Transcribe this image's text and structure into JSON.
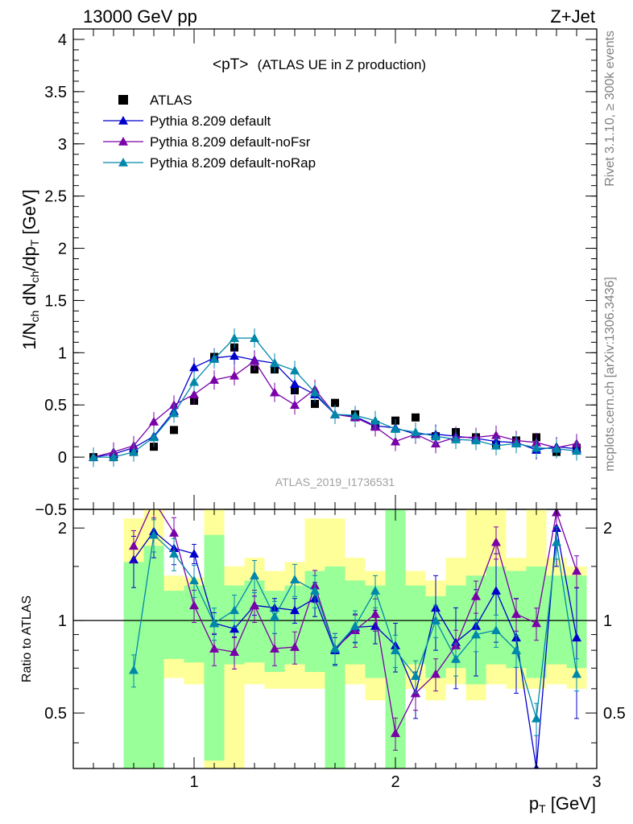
{
  "header": {
    "left": "13000 GeV pp",
    "right": "Z+Jet"
  },
  "side_labels": {
    "rivet": "Rivet 3.1.10, ≥ 300k events",
    "mcplots": "mcplots.cern.ch [arXiv:1306.3436]"
  },
  "analysis_tag": "ATLAS_2019_I1736531",
  "colors": {
    "data": "#000000",
    "default": "#0000cc",
    "noFsr": "#7a00a8",
    "noRap": "#0088aa",
    "band_yellow": "#ffff99",
    "band_green": "#99ff99"
  },
  "chart_data": [
    {
      "type": "line",
      "title": "<pT>",
      "subtitle": "(ATLAS UE in Z production)",
      "ylabel": "1/N_ch dN_ch/dp_T [GeV]",
      "xlim": [
        0.4,
        3.0
      ],
      "ylim": [
        -0.5,
        4.1
      ],
      "yticks": [
        -0.5,
        0,
        0.5,
        1,
        1.5,
        2,
        2.5,
        3,
        3.5,
        4
      ],
      "ytick_labels": [
        "−0.5",
        "0",
        "0.5",
        "1",
        "1.5",
        "2",
        "2.5",
        "3",
        "3.5",
        "4"
      ],
      "legend_position": "top-left",
      "x": [
        0.5,
        0.6,
        0.7,
        0.8,
        0.9,
        1.0,
        1.1,
        1.2,
        1.3,
        1.4,
        1.5,
        1.6,
        1.7,
        1.8,
        1.9,
        2.0,
        2.1,
        2.2,
        2.3,
        2.4,
        2.5,
        2.6,
        2.7,
        2.8,
        2.9
      ],
      "series": [
        {
          "name": "ATLAS",
          "key": "data",
          "marker": "square",
          "values": [
            0.0,
            0.0,
            0.05,
            0.1,
            0.26,
            0.54,
            0.96,
            1.05,
            0.84,
            0.84,
            0.64,
            0.51,
            0.52,
            0.41,
            0.31,
            0.35,
            0.38,
            0.2,
            0.24,
            0.19,
            0.12,
            0.16,
            0.19,
            0.05,
            0.09
          ]
        },
        {
          "name": "Pythia 8.209 default",
          "key": "default",
          "marker": "triangle",
          "values": [
            0.0,
            0.03,
            0.09,
            0.2,
            0.44,
            0.86,
            0.95,
            0.97,
            0.93,
            0.9,
            0.7,
            0.6,
            0.41,
            0.39,
            0.3,
            0.28,
            0.22,
            0.22,
            0.2,
            0.18,
            0.15,
            0.14,
            0.07,
            0.1,
            0.08
          ]
        },
        {
          "name": "Pythia 8.209 default-noFsr",
          "key": "noFsr",
          "marker": "triangle",
          "values": [
            0.0,
            0.05,
            0.11,
            0.34,
            0.5,
            0.6,
            0.74,
            0.78,
            0.92,
            0.62,
            0.5,
            0.65,
            0.41,
            0.38,
            0.29,
            0.15,
            0.22,
            0.13,
            0.19,
            0.19,
            0.21,
            0.16,
            0.14,
            0.09,
            0.13
          ]
        },
        {
          "name": "Pythia 8.209 default-noRap",
          "key": "noRap",
          "marker": "triangle",
          "values": [
            0.0,
            0.0,
            0.05,
            0.19,
            0.42,
            0.72,
            0.94,
            1.14,
            1.14,
            0.9,
            0.83,
            0.62,
            0.41,
            0.4,
            0.35,
            0.27,
            0.24,
            0.2,
            0.17,
            0.16,
            0.11,
            0.13,
            0.09,
            0.08,
            0.06
          ]
        }
      ]
    },
    {
      "type": "line",
      "ylabel": "Ratio to ATLAS",
      "xlabel": "p_T [GeV]",
      "xlim": [
        0.4,
        3.0
      ],
      "ylim": [
        0.33,
        2.3
      ],
      "yscale": "log",
      "yticks": [
        0.5,
        1,
        2
      ],
      "ytick_labels": [
        "0.5",
        "1",
        "2"
      ],
      "xticks": [
        1,
        2,
        3
      ],
      "xtick_labels": [
        "1",
        "2",
        "3"
      ],
      "reference_line": 1,
      "bands": {
        "edges": [
          0.65,
          0.75,
          0.85,
          0.95,
          1.05,
          1.15,
          1.25,
          1.35,
          1.45,
          1.55,
          1.65,
          1.75,
          1.85,
          1.95,
          2.05,
          2.15,
          2.25,
          2.35,
          2.45,
          2.55,
          2.65,
          2.75,
          2.85,
          2.95
        ],
        "yellow": [
          [
            0.3,
            2.15
          ],
          [
            0.3,
            2.3
          ],
          [
            0.65,
            1.4
          ],
          [
            0.62,
            1.38
          ],
          [
            0.3,
            2.3
          ],
          [
            0.3,
            1.5
          ],
          [
            0.62,
            1.6
          ],
          [
            0.6,
            1.45
          ],
          [
            0.6,
            1.55
          ],
          [
            0.6,
            2.15
          ],
          [
            0.3,
            2.15
          ],
          [
            0.62,
            1.6
          ],
          [
            0.55,
            1.45
          ],
          [
            0.3,
            2.3
          ],
          [
            0.6,
            1.45
          ],
          [
            0.55,
            1.35
          ],
          [
            0.62,
            1.6
          ],
          [
            0.55,
            2.3
          ],
          [
            0.62,
            2.3
          ],
          [
            0.6,
            1.6
          ],
          [
            0.6,
            2.3
          ],
          [
            0.62,
            1.6
          ],
          [
            0.6,
            1.5
          ],
          [
            0.3,
            2.3
          ]
        ],
        "green": [
          [
            0.3,
            1.55
          ],
          [
            0.3,
            1.75
          ],
          [
            0.75,
            1.25
          ],
          [
            0.73,
            1.3
          ],
          [
            0.35,
            1.9
          ],
          [
            0.72,
            1.3
          ],
          [
            0.73,
            1.35
          ],
          [
            0.68,
            1.25
          ],
          [
            0.72,
            1.3
          ],
          [
            0.68,
            1.45
          ],
          [
            0.3,
            1.5
          ],
          [
            0.72,
            1.35
          ],
          [
            0.65,
            1.3
          ],
          [
            0.3,
            2.3
          ],
          [
            0.72,
            1.3
          ],
          [
            0.65,
            1.2
          ],
          [
            0.7,
            1.3
          ],
          [
            0.62,
            1.4
          ],
          [
            0.72,
            1.5
          ],
          [
            0.7,
            1.45
          ],
          [
            0.65,
            1.5
          ],
          [
            0.72,
            1.4
          ],
          [
            0.7,
            1.4
          ],
          [
            0.55,
            1.5
          ]
        ]
      },
      "x": [
        0.5,
        0.6,
        0.7,
        0.8,
        0.9,
        1.0,
        1.1,
        1.2,
        1.3,
        1.4,
        1.5,
        1.6,
        1.7,
        1.8,
        1.9,
        2.0,
        2.1,
        2.2,
        2.3,
        2.4,
        2.5,
        2.6,
        2.7,
        2.8,
        2.9
      ],
      "series": [
        {
          "key": "default",
          "values": [
            null,
            null,
            1.58,
            1.95,
            1.72,
            1.65,
            0.98,
            0.94,
            1.12,
            1.1,
            1.08,
            1.18,
            0.8,
            0.95,
            0.96,
            0.83,
            0.58,
            1.1,
            0.85,
            0.96,
            1.25,
            0.88,
            0.33,
            2.0,
            0.88
          ],
          "errors": [
            null,
            null,
            0.3,
            0.35,
            0.2,
            0.12,
            0.08,
            0.06,
            0.08,
            0.08,
            0.1,
            0.15,
            0.08,
            0.1,
            0.12,
            0.15,
            0.1,
            0.3,
            0.25,
            0.3,
            0.4,
            0.3,
            0.15,
            0.5,
            0.4
          ]
        },
        {
          "key": "noFsr",
          "values": [
            null,
            null,
            1.75,
            2.45,
            1.93,
            1.12,
            0.81,
            0.79,
            1.12,
            0.81,
            0.82,
            1.3,
            0.81,
            0.93,
            1.05,
            0.43,
            0.58,
            0.67,
            0.83,
            1.2,
            1.8,
            1.05,
            0.98,
            2.25,
            1.45
          ]
        },
        {
          "key": "noRap",
          "values": [
            null,
            null,
            0.69,
            1.9,
            1.65,
            1.35,
            0.98,
            1.08,
            1.4,
            1.03,
            1.36,
            1.25,
            0.81,
            0.96,
            1.25,
            0.8,
            0.66,
            1.0,
            0.75,
            0.9,
            0.93,
            0.8,
            0.48,
            1.8,
            0.67
          ]
        }
      ]
    }
  ]
}
